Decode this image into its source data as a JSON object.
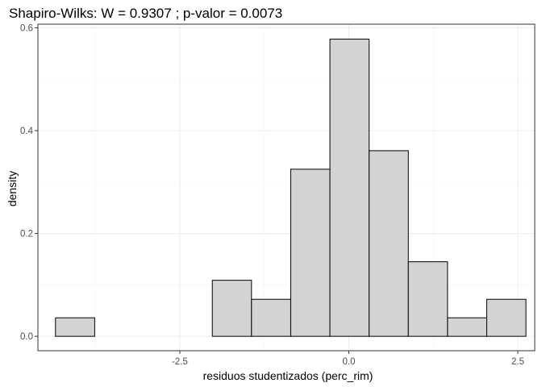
{
  "chart_data": {
    "type": "bar",
    "title": "Shapiro-Wilks: W =  0.9307 ; p-valor =  0.0073",
    "xlabel": "residuos studentizados (perc_rim)",
    "ylabel": "density",
    "xlim": [
      -4.6,
      2.75
    ],
    "ylim": [
      -0.028,
      0.607
    ],
    "x_ticks": [
      -2.5,
      0.0,
      2.5
    ],
    "x_tick_labels": [
      "-2.5",
      "0.0",
      "2.5"
    ],
    "y_ticks": [
      0.0,
      0.2,
      0.4,
      0.6
    ],
    "y_tick_labels": [
      "0.0",
      "0.2",
      "0.4",
      "0.6"
    ],
    "bin_width": 0.58,
    "bins": [
      {
        "x0": -4.34,
        "x1": -3.76,
        "density": 0.036
      },
      {
        "x0": -3.76,
        "x1": -3.18,
        "density": 0.0
      },
      {
        "x0": -3.18,
        "x1": -2.6,
        "density": 0.0
      },
      {
        "x0": -2.6,
        "x1": -2.02,
        "density": 0.0
      },
      {
        "x0": -2.02,
        "x1": -1.44,
        "density": 0.109
      },
      {
        "x0": -1.44,
        "x1": -0.86,
        "density": 0.072
      },
      {
        "x0": -0.86,
        "x1": -0.28,
        "density": 0.325
      },
      {
        "x0": -0.28,
        "x1": 0.3,
        "density": 0.578
      },
      {
        "x0": 0.3,
        "x1": 0.88,
        "density": 0.361
      },
      {
        "x0": 0.88,
        "x1": 1.46,
        "density": 0.145
      },
      {
        "x0": 1.46,
        "x1": 2.04,
        "density": 0.036
      },
      {
        "x0": 2.04,
        "x1": 2.62,
        "density": 0.072
      }
    ],
    "grid": true,
    "legend": "none",
    "colors": {
      "bar_fill": "#d3d3d3",
      "bar_stroke": "#000000",
      "grid": "#ebebeb",
      "panel_border": "#333333"
    }
  }
}
